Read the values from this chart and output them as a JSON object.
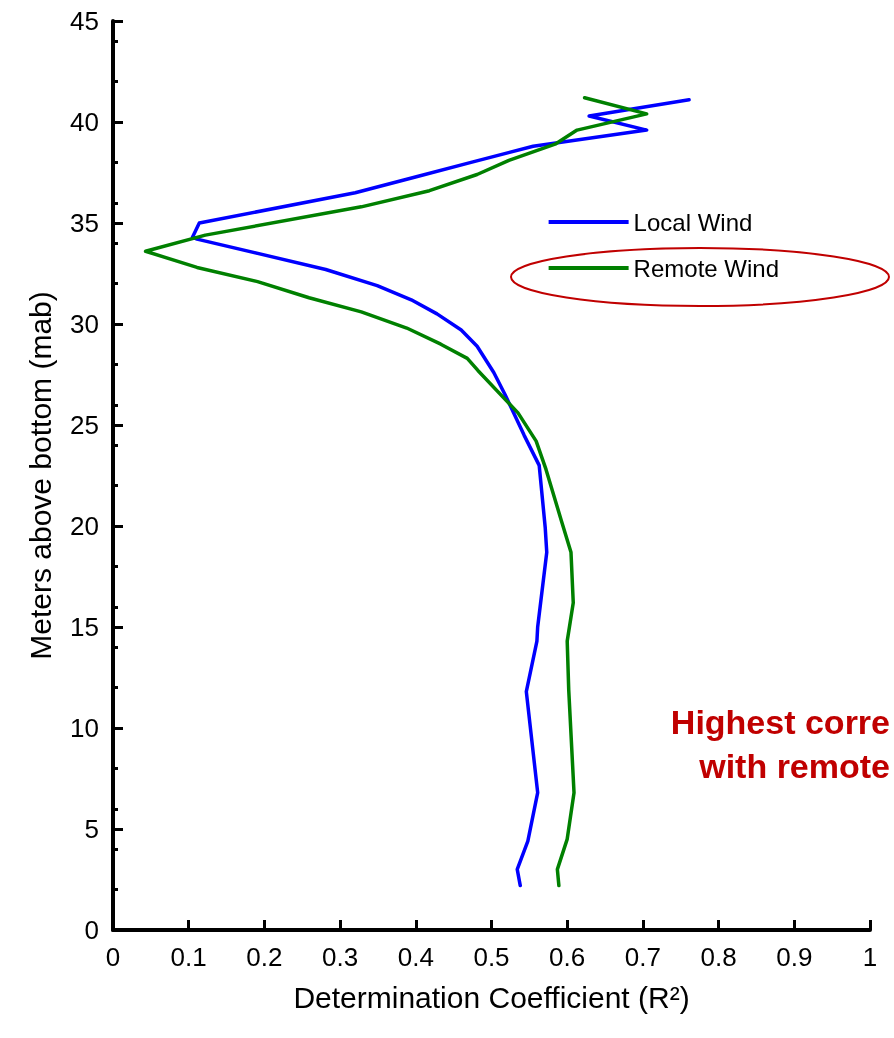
{
  "chart_data": {
    "type": "line",
    "xlabel": "Determination Coefficient (R²)",
    "ylabel": "Meters above bottom (mab)",
    "xlim": [
      0,
      1
    ],
    "xticks": [
      0,
      0.1,
      0.2,
      0.3,
      0.4,
      0.5,
      0.6,
      0.7,
      0.8,
      0.9,
      1
    ],
    "ylim": [
      0,
      45
    ],
    "yticks": [
      0,
      5,
      10,
      15,
      20,
      25,
      30,
      35,
      40,
      45
    ],
    "grid": false,
    "legend": "top right",
    "marker": "none",
    "line_style": "solid",
    "series": [
      {
        "name": "Local Wind",
        "color": "#0000ff",
        "x": [
          0.538,
          0.534,
          0.548,
          0.561,
          0.546,
          0.56,
          0.561,
          0.573,
          0.571,
          0.563,
          0.543,
          0.518,
          0.503,
          0.481,
          0.46,
          0.428,
          0.394,
          0.349,
          0.281,
          0.111,
          0.105,
          0.114,
          0.32,
          0.402,
          0.473,
          0.555,
          0.705,
          0.629,
          0.761
        ],
        "values": [
          2.2,
          3.0,
          4.4,
          6.8,
          11.8,
          14.3,
          15.0,
          18.7,
          19.9,
          23.0,
          24.5,
          26.5,
          27.6,
          28.9,
          29.7,
          30.5,
          31.2,
          31.9,
          32.7,
          34.2,
          34.3,
          35.0,
          36.5,
          37.3,
          38.0,
          38.8,
          39.6,
          40.3,
          41.1
        ]
      },
      {
        "name": "Remote Wind",
        "color": "#008000",
        "x": [
          0.589,
          0.587,
          0.6,
          0.609,
          0.602,
          0.6,
          0.608,
          0.605,
          0.592,
          0.572,
          0.559,
          0.535,
          0.482,
          0.468,
          0.433,
          0.388,
          0.328,
          0.259,
          0.191,
          0.111,
          0.043,
          0.122,
          0.328,
          0.418,
          0.481,
          0.523,
          0.584,
          0.613,
          0.705,
          0.623
        ],
        "values": [
          2.2,
          3.0,
          4.5,
          6.8,
          11.9,
          14.3,
          16.2,
          18.7,
          20.3,
          22.8,
          24.2,
          25.6,
          27.7,
          28.3,
          29.0,
          29.8,
          30.6,
          31.3,
          32.1,
          32.8,
          33.6,
          34.4,
          35.8,
          36.6,
          37.4,
          38.1,
          38.9,
          39.6,
          40.4,
          41.2
        ]
      }
    ],
    "annotations": [
      "Highest corre",
      "with remote"
    ]
  }
}
